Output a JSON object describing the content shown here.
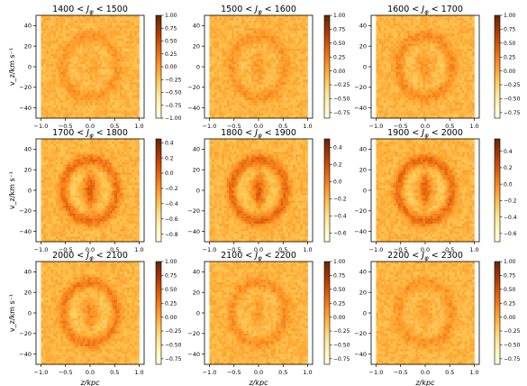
{
  "figure": {
    "ylabel_row": "v_z/km s⁻¹",
    "xlabel_col": "z/kpc"
  },
  "colormap": "YlOrBr",
  "chart_data": [
    {
      "type": "heatmap",
      "title": "1400 < J_φ < 1500",
      "title_parts": {
        "lo": "1400",
        "hi": "1500"
      },
      "xlabel": "",
      "ylabel": "v_z/km s⁻¹",
      "xlim": [
        -1.1,
        1.1
      ],
      "ylim": [
        -50,
        50
      ],
      "x_ticks": [
        -1.0,
        -0.5,
        0.0,
        0.5,
        1.0
      ],
      "y_ticks": [
        -40,
        -20,
        0,
        20,
        40
      ],
      "colorbar": {
        "range": [
          -1.0,
          1.0
        ],
        "ticks": [
          1.0,
          0.75,
          0.5,
          0.25,
          0.0,
          -0.25,
          -0.5,
          -0.75,
          -1.0
        ]
      },
      "pattern": {
        "ring": 0.25,
        "core": 0.1
      }
    },
    {
      "type": "heatmap",
      "title": "1500 < J_φ < 1600",
      "title_parts": {
        "lo": "1500",
        "hi": "1600"
      },
      "xlabel": "",
      "ylabel": "",
      "xlim": [
        -1.1,
        1.1
      ],
      "ylim": [
        -50,
        50
      ],
      "x_ticks": [
        -1.0,
        -0.5,
        0.0,
        0.5,
        1.0
      ],
      "y_ticks": [
        -40,
        -20,
        0,
        20,
        40
      ],
      "colorbar": {
        "range": [
          -0.85,
          1.0
        ],
        "ticks": [
          1.0,
          0.75,
          0.5,
          0.25,
          0.0,
          -0.25,
          -0.5,
          -0.75
        ]
      },
      "pattern": {
        "ring": 0.25,
        "core": 0.15
      }
    },
    {
      "type": "heatmap",
      "title": "1600 < J_φ < 1700",
      "title_parts": {
        "lo": "1600",
        "hi": "1700"
      },
      "xlabel": "",
      "ylabel": "",
      "xlim": [
        -1.1,
        1.1
      ],
      "ylim": [
        -50,
        50
      ],
      "x_ticks": [
        -1.0,
        -0.5,
        0.0,
        0.5,
        1.0
      ],
      "y_ticks": [
        -40,
        -20,
        0,
        20,
        40
      ],
      "colorbar": {
        "range": [
          -0.85,
          1.0
        ],
        "ticks": [
          1.0,
          0.75,
          0.5,
          0.25,
          0.0,
          -0.25,
          -0.5,
          -0.75
        ]
      },
      "pattern": {
        "ring": 0.35,
        "core": 0.2
      }
    },
    {
      "type": "heatmap",
      "title": "1700 < J_φ < 1800",
      "title_parts": {
        "lo": "1700",
        "hi": "1800"
      },
      "xlabel": "",
      "ylabel": "v_z/km s⁻¹",
      "xlim": [
        -1.1,
        1.1
      ],
      "ylim": [
        -50,
        50
      ],
      "x_ticks": [
        -1.0,
        -0.5,
        0.0,
        0.5,
        1.0
      ],
      "y_ticks": [
        -40,
        -20,
        0,
        20,
        40
      ],
      "colorbar": {
        "range": [
          -0.9,
          0.45
        ],
        "ticks": [
          0.4,
          0.2,
          0.0,
          -0.2,
          -0.4,
          -0.6,
          -0.8
        ]
      },
      "pattern": {
        "ring": 0.55,
        "core": 0.6
      }
    },
    {
      "type": "heatmap",
      "title": "1800 < J_φ < 1900",
      "title_parts": {
        "lo": "1800",
        "hi": "1900"
      },
      "xlabel": "",
      "ylabel": "",
      "xlim": [
        -1.1,
        1.1
      ],
      "ylim": [
        -50,
        50
      ],
      "x_ticks": [
        -1.0,
        -0.5,
        0.0,
        0.5,
        1.0
      ],
      "y_ticks": [
        -40,
        -20,
        0,
        20,
        40
      ],
      "colorbar": {
        "range": [
          -0.7,
          0.5
        ],
        "ticks": [
          0.4,
          0.2,
          0.0,
          -0.2,
          -0.4,
          -0.6
        ]
      },
      "pattern": {
        "ring": 0.6,
        "core": 0.6
      }
    },
    {
      "type": "heatmap",
      "title": "1900 < J_φ < 2000",
      "title_parts": {
        "lo": "1900",
        "hi": "2000"
      },
      "xlabel": "",
      "ylabel": "",
      "xlim": [
        -1.1,
        1.1
      ],
      "ylim": [
        -50,
        50
      ],
      "x_ticks": [
        -1.0,
        -0.5,
        0.0,
        0.5,
        1.0
      ],
      "y_ticks": [
        -40,
        -20,
        0,
        20,
        40
      ],
      "colorbar": {
        "range": [
          -0.7,
          0.55
        ],
        "ticks": [
          0.4,
          0.2,
          0.0,
          -0.2,
          -0.4,
          -0.6
        ]
      },
      "pattern": {
        "ring": 0.6,
        "core": 0.55
      }
    },
    {
      "type": "heatmap",
      "title": "2000 < J_φ < 2100",
      "title_parts": {
        "lo": "2000",
        "hi": "2100"
      },
      "xlabel": "z/kpc",
      "ylabel": "v_z/km s⁻¹",
      "xlim": [
        -1.1,
        1.1
      ],
      "ylim": [
        -50,
        50
      ],
      "x_ticks": [
        -1.0,
        -0.5,
        0.0,
        0.5,
        1.0
      ],
      "y_ticks": [
        -40,
        -20,
        0,
        20,
        40
      ],
      "colorbar": {
        "range": [
          -0.85,
          1.0
        ],
        "ticks": [
          1.0,
          0.75,
          0.5,
          0.25,
          0.0,
          -0.25,
          -0.5,
          -0.75
        ]
      },
      "pattern": {
        "ring": 0.45,
        "core": 0.25
      }
    },
    {
      "type": "heatmap",
      "title": "2100 < J_φ < 2200",
      "title_parts": {
        "lo": "2100",
        "hi": "2200"
      },
      "xlabel": "z/kpc",
      "ylabel": "",
      "xlim": [
        -1.1,
        1.1
      ],
      "ylim": [
        -50,
        50
      ],
      "x_ticks": [
        -1.0,
        -0.5,
        0.0,
        0.5,
        1.0
      ],
      "y_ticks": [
        -40,
        -20,
        0,
        20,
        40
      ],
      "colorbar": {
        "range": [
          -0.85,
          1.0
        ],
        "ticks": [
          1.0,
          0.75,
          0.5,
          0.25,
          0.0,
          -0.25,
          -0.5,
          -0.75
        ]
      },
      "pattern": {
        "ring": 0.3,
        "core": 0.15
      }
    },
    {
      "type": "heatmap",
      "title": "2200 < J_φ < 2300",
      "title_parts": {
        "lo": "2200",
        "hi": "2300"
      },
      "xlabel": "z/kpc",
      "ylabel": "",
      "xlim": [
        -1.1,
        1.1
      ],
      "ylim": [
        -50,
        50
      ],
      "x_ticks": [
        -1.0,
        -0.5,
        0.0,
        0.5,
        1.0
      ],
      "y_ticks": [
        -40,
        -20,
        0,
        20,
        40
      ],
      "colorbar": {
        "range": [
          -0.85,
          1.0
        ],
        "ticks": [
          1.0,
          0.75,
          0.5,
          0.25,
          0.0,
          -0.25,
          -0.5,
          -0.75
        ]
      },
      "pattern": {
        "ring": 0.25,
        "core": 0.1
      }
    }
  ]
}
